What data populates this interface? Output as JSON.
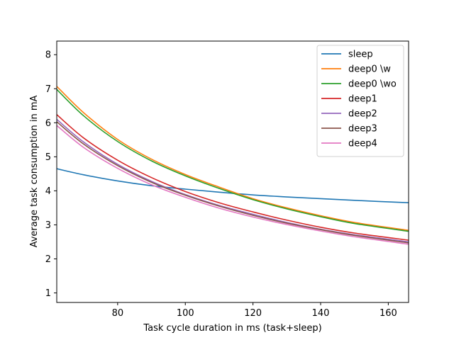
{
  "chart_data": {
    "type": "line",
    "title": "",
    "xlabel": "Task cycle duration in ms (task+sleep)",
    "ylabel": "Average task consumption in mA",
    "xlim": [
      62,
      166
    ],
    "ylim": [
      0.72,
      8.4
    ],
    "xticks": [
      80,
      100,
      120,
      140,
      160
    ],
    "yticks": [
      1,
      2,
      3,
      4,
      5,
      6,
      7,
      8
    ],
    "grid": false,
    "legend_position": "upper right",
    "x": [
      62,
      70,
      80,
      90,
      100,
      110,
      120,
      130,
      140,
      150,
      166
    ],
    "series": [
      {
        "name": "sleep",
        "color": "#1f77b4",
        "values": [
          4.65,
          4.47,
          4.29,
          4.15,
          4.05,
          3.96,
          3.88,
          3.82,
          3.77,
          3.72,
          3.65
        ]
      },
      {
        "name": "deep0 \\w",
        "color": "#ff7f0e",
        "values": [
          7.07,
          6.29,
          5.51,
          4.93,
          4.48,
          4.11,
          3.77,
          3.5,
          3.27,
          3.07,
          2.84
        ]
      },
      {
        "name": "deep0 \\wo",
        "color": "#2ca02c",
        "values": [
          6.98,
          6.2,
          5.45,
          4.88,
          4.44,
          4.07,
          3.74,
          3.47,
          3.24,
          3.04,
          2.81
        ]
      },
      {
        "name": "deep1",
        "color": "#d62728",
        "values": [
          6.24,
          5.55,
          4.9,
          4.39,
          3.98,
          3.65,
          3.38,
          3.14,
          2.93,
          2.76,
          2.55
        ]
      },
      {
        "name": "deep2",
        "color": "#9467bd",
        "values": [
          6.1,
          5.43,
          4.78,
          4.28,
          3.89,
          3.57,
          3.31,
          3.07,
          2.87,
          2.71,
          2.5
        ]
      },
      {
        "name": "deep3",
        "color": "#8c564b",
        "values": [
          6.03,
          5.37,
          4.74,
          4.25,
          3.87,
          3.55,
          3.28,
          3.05,
          2.86,
          2.69,
          2.47
        ]
      },
      {
        "name": "deep4",
        "color": "#e377c2",
        "values": [
          5.92,
          5.27,
          4.66,
          4.18,
          3.81,
          3.49,
          3.23,
          3.01,
          2.82,
          2.65,
          2.43
        ]
      }
    ]
  }
}
